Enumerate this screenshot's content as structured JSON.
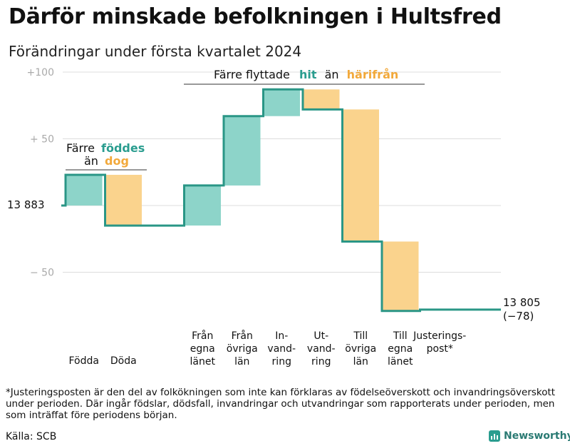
{
  "title": "Därför minskade befolkningen i Hultsfred",
  "subtitle": "Förändringar under första kvartalet 2024",
  "footnote": "*Justeringsposten är den del av folkökningen som inte kan förklaras av födelseöverskott och invandringsöverskott under perioden. Där ingår födslar, dödsfall, invandringar och utvandringar som rapporterats under perioden, men som inträffat före periodens början.",
  "source": "Källa: SCB",
  "brand": "Newsworthy",
  "colors": {
    "increase": "#8dd4c9",
    "decrease": "#fad38d",
    "line": "#2a9686",
    "grid": "#dddddd"
  },
  "chart_data": {
    "type": "waterfall",
    "start_value": 13883,
    "start_label": "13  883",
    "end_value": 13805,
    "end_label": "13 805",
    "end_change_label": "(−78)",
    "y_ticks": [
      {
        "value": 100,
        "label": "+100"
      },
      {
        "value": 50,
        "label": "+  50"
      },
      {
        "value": -50,
        "label": "−  50"
      }
    ],
    "ylim": [
      -100,
      105
    ],
    "steps": [
      {
        "category": "Födda",
        "label_lines": [
          "Födda"
        ],
        "value": 23,
        "type": "increase"
      },
      {
        "category": "Döda",
        "label_lines": [
          "Döda"
        ],
        "value": -38,
        "type": "decrease"
      },
      {
        "category": "",
        "label_lines": [],
        "value": 0,
        "type": "gap"
      },
      {
        "category": "Från egna länet",
        "label_lines": [
          "Från",
          "egna",
          "länet"
        ],
        "value": 30,
        "type": "increase"
      },
      {
        "category": "Från övriga län",
        "label_lines": [
          "Från",
          "övriga",
          "län"
        ],
        "value": 52,
        "type": "increase"
      },
      {
        "category": "Invandring",
        "label_lines": [
          "In-",
          "vand-",
          "ring"
        ],
        "value": 20,
        "type": "increase"
      },
      {
        "category": "Utvandring",
        "label_lines": [
          "Ut-",
          "vand-",
          "ring"
        ],
        "value": -15,
        "type": "decrease"
      },
      {
        "category": "Till övriga län",
        "label_lines": [
          "Till",
          "övriga",
          "län"
        ],
        "value": -99,
        "type": "decrease"
      },
      {
        "category": "Till egna länet",
        "label_lines": [
          "Till",
          "egna",
          "länet"
        ],
        "value": -52,
        "type": "decrease"
      },
      {
        "category": "Justeringspost*",
        "label_lines": [
          "Justerings-",
          "post*"
        ],
        "value": 1,
        "type": "adjustment"
      }
    ],
    "annotations": {
      "births": {
        "line1": "Färre",
        "hit": "föddes",
        "line2": "än",
        "bort": "dog"
      },
      "migration": {
        "pre": "Färre flyttade",
        "hit": "hit",
        "mid": "än",
        "bort": "härifrån"
      }
    }
  }
}
